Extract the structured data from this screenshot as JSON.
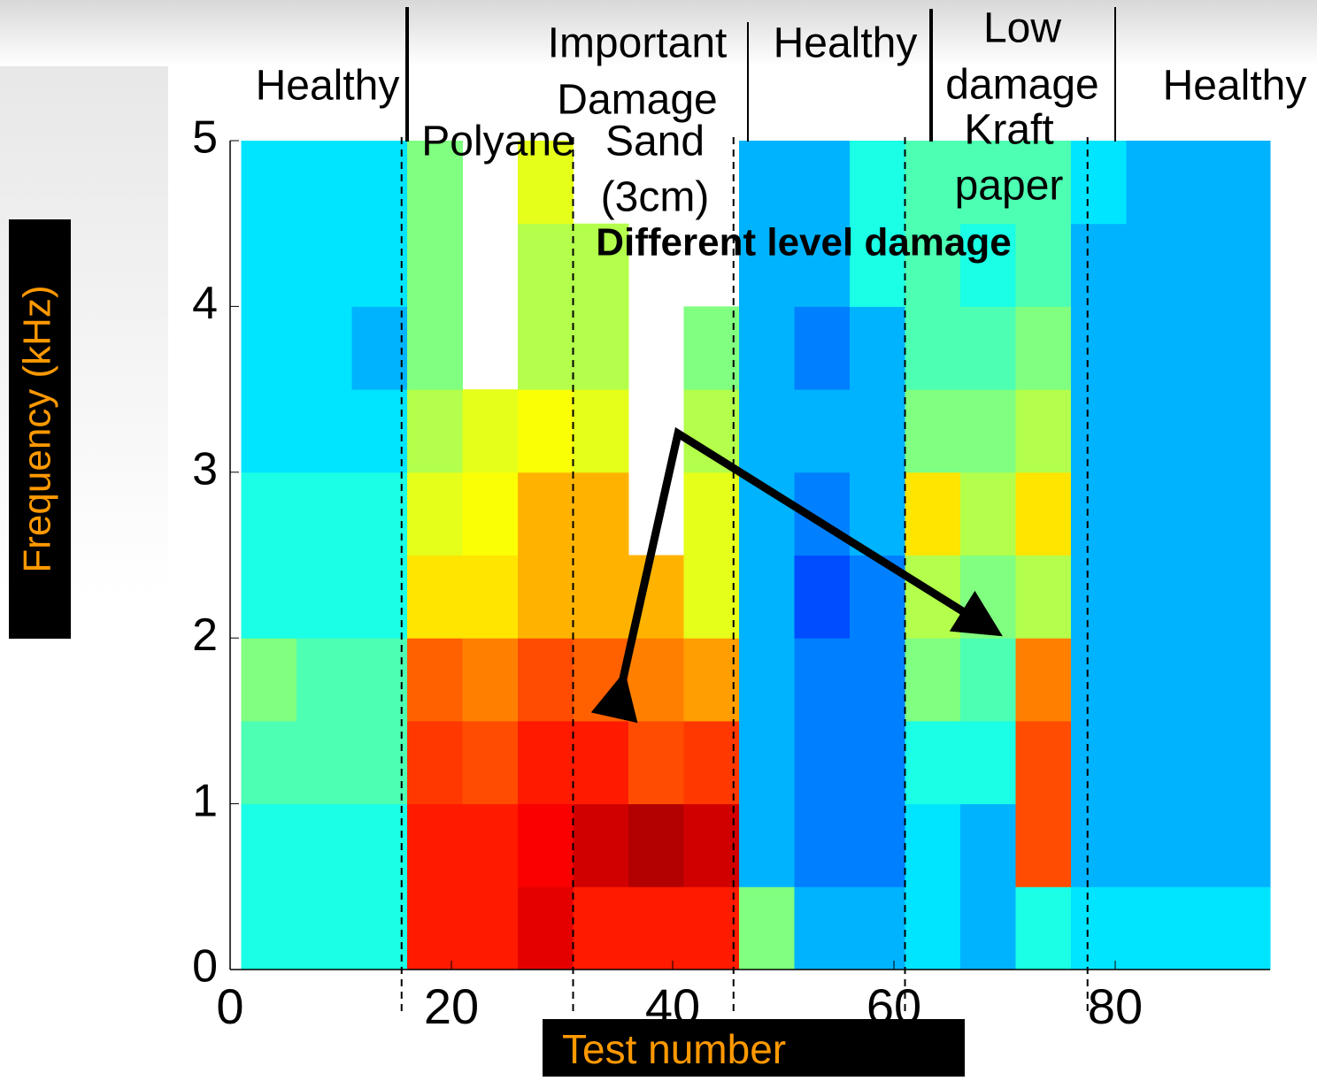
{
  "chart_data": {
    "type": "heatmap",
    "xlabel": "Test number",
    "ylabel": "Frequency (kHz)",
    "xlim": [
      0,
      94
    ],
    "ylim": [
      0,
      5
    ],
    "xticks": [
      0,
      20,
      40,
      60,
      80
    ],
    "yticks": [
      0,
      1,
      2,
      3,
      4,
      5
    ],
    "colormap": "jet",
    "x_bins": [
      1,
      6,
      11,
      16,
      21,
      26,
      31,
      36,
      41,
      46,
      51,
      56,
      61,
      66,
      71,
      76,
      81,
      86,
      94
    ],
    "y_bins": [
      0,
      0.5,
      1,
      1.5,
      2,
      2.5,
      3,
      3.5,
      4,
      4.5,
      5
    ],
    "z": [
      [
        0.4,
        0.4,
        0.4,
        0.85,
        0.85,
        0.9,
        0.85,
        0.85,
        0.85,
        0.5,
        0.3,
        0.3,
        0.35,
        0.3,
        0.4,
        0.35,
        0.35,
        0.35
      ],
      [
        0.4,
        0.4,
        0.4,
        0.85,
        0.85,
        0.88,
        0.92,
        0.95,
        0.92,
        0.3,
        0.25,
        0.25,
        0.35,
        0.3,
        0.8,
        0.3,
        0.3,
        0.3
      ],
      [
        0.45,
        0.45,
        0.45,
        0.82,
        0.8,
        0.85,
        0.85,
        0.8,
        0.82,
        0.3,
        0.25,
        0.25,
        0.4,
        0.4,
        0.8,
        0.3,
        0.3,
        0.3
      ],
      [
        0.5,
        0.45,
        0.45,
        0.78,
        0.75,
        0.8,
        0.78,
        0.75,
        0.72,
        0.3,
        0.25,
        0.25,
        0.5,
        0.45,
        0.75,
        0.3,
        0.3,
        0.3
      ],
      [
        0.4,
        0.4,
        0.4,
        0.65,
        0.65,
        0.7,
        0.7,
        0.7,
        0.6,
        0.3,
        0.2,
        0.25,
        0.55,
        0.5,
        0.55,
        0.3,
        0.3,
        0.3
      ],
      [
        0.4,
        0.4,
        0.4,
        0.6,
        0.62,
        0.7,
        0.7,
        null,
        0.6,
        0.3,
        0.25,
        0.3,
        0.65,
        0.55,
        0.65,
        0.3,
        0.3,
        0.3
      ],
      [
        0.35,
        0.35,
        0.35,
        0.55,
        0.6,
        0.62,
        0.6,
        null,
        0.55,
        0.3,
        0.3,
        0.3,
        0.5,
        0.5,
        0.55,
        0.3,
        0.3,
        0.3
      ],
      [
        0.35,
        0.35,
        0.3,
        0.5,
        null,
        0.55,
        0.55,
        null,
        0.5,
        0.3,
        0.25,
        0.3,
        0.45,
        0.45,
        0.5,
        0.3,
        0.3,
        0.3
      ],
      [
        0.35,
        0.35,
        0.35,
        0.5,
        null,
        0.55,
        0.55,
        null,
        null,
        0.3,
        0.3,
        0.4,
        0.45,
        0.4,
        0.45,
        0.3,
        0.3,
        0.3
      ],
      [
        0.35,
        0.35,
        0.35,
        0.5,
        null,
        0.6,
        null,
        null,
        null,
        0.3,
        0.3,
        0.4,
        0.45,
        0.45,
        0.45,
        0.35,
        0.3,
        0.3
      ]
    ],
    "dividers": [
      15.5,
      31,
      45.5,
      61,
      77.5
    ],
    "conditions": [
      [
        "Healthy"
      ],
      [
        "Important",
        "Damage"
      ],
      [
        "Healthy"
      ],
      [
        "Low",
        "damage"
      ],
      [
        "Healthy"
      ]
    ],
    "materials": [
      [
        "Polyane"
      ],
      [
        "Sand",
        "(3cm)"
      ],
      [
        "Kraft",
        "paper"
      ]
    ],
    "annotation": "Different level damage"
  }
}
